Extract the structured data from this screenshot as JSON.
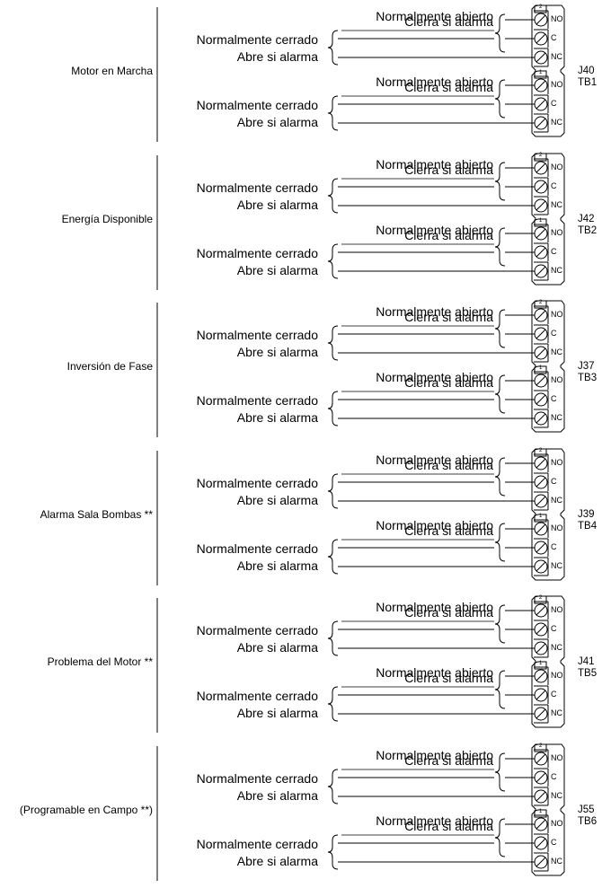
{
  "terminal_labels": {
    "no": "NO",
    "c": "C",
    "nc": "NC",
    "pin_upper": "2",
    "pin_lower": "1"
  },
  "relay_text": {
    "no_contact": "Normalmente abierto",
    "no_action": "Cierra si alarma",
    "nc_contact": "Normalmente cerrado",
    "nc_action": "Abre si alarma"
  },
  "blocks": [
    {
      "description": "Motor en Marcha",
      "jumper": "J40",
      "terminal_block": "TB1"
    },
    {
      "description": "Energía Disponible",
      "jumper": "J42",
      "terminal_block": "TB2"
    },
    {
      "description": "Inversión de Fase",
      "jumper": "J37",
      "terminal_block": "TB3"
    },
    {
      "description": "Alarma Sala Bombas **",
      "jumper": "J39",
      "terminal_block": "TB4"
    },
    {
      "description": "Problema del Motor **",
      "jumper": "J41",
      "terminal_block": "TB5"
    },
    {
      "description": "(Programable en Campo **)",
      "jumper": "J55",
      "terminal_block": "TB6"
    }
  ]
}
